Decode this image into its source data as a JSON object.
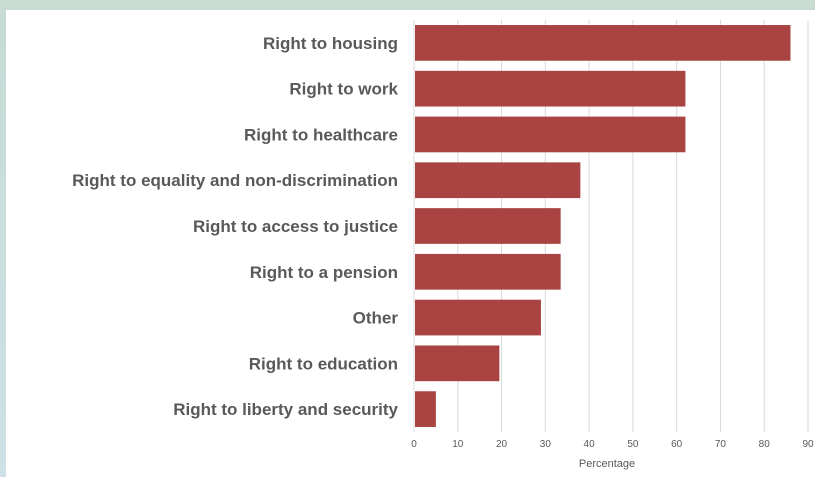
{
  "chart_data": {
    "type": "bar",
    "orientation": "horizontal",
    "title": "",
    "xlabel": "Percentage",
    "ylabel": "",
    "xlim": [
      0,
      90
    ],
    "ticks": [
      "0",
      "10",
      "20",
      "30",
      "40",
      "50",
      "60",
      "70",
      "80",
      "90"
    ],
    "grid": true,
    "bar_color": "#a94442",
    "categories": [
      "Right to housing",
      "Right to work",
      "Right to healthcare",
      "Right to equality and non-discrimination",
      "Right to access to justice",
      "Right to a pension",
      "Other",
      "Right to education",
      "Right to liberty and security"
    ],
    "values": [
      86,
      62,
      62,
      38,
      33.5,
      33.5,
      29,
      19.5,
      5
    ]
  }
}
